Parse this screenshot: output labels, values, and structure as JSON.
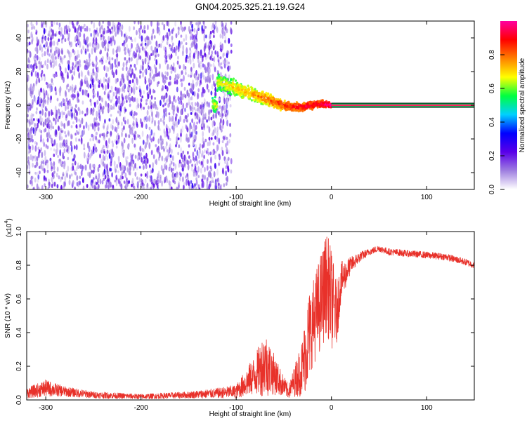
{
  "title": "GN04.2025.325.21.19.G24",
  "chart_data": [
    {
      "type": "heatmap",
      "xlabel": "Height of straight line (km)",
      "ylabel": "Frequency (Hz)",
      "xlim": [
        -320,
        150
      ],
      "ylim": [
        -50,
        50
      ],
      "x_ticks": [
        -300,
        -200,
        -100,
        0,
        100
      ],
      "y_ticks": [
        -40,
        -20,
        0,
        20,
        40
      ],
      "colorbar": {
        "label": "Normalized spectral amplitude",
        "range": [
          0,
          1
        ],
        "ticks": [
          "0.0",
          "0.2",
          "0.4",
          "0.6",
          "0.8"
        ],
        "colors": [
          "#ffffff",
          "#9f7fe0",
          "#5a00e8",
          "#0000ff",
          "#00d0ff",
          "#00ff40",
          "#ffff00",
          "#ff8000",
          "#ff0000",
          "#ff00a0"
        ]
      },
      "ridge": {
        "x": [
          -120,
          -100,
          -80,
          -60,
          -50,
          -40,
          -30,
          -20,
          -10,
          0,
          150
        ],
        "y": [
          14,
          10,
          6,
          2,
          0,
          -1,
          -1,
          0,
          1,
          0,
          0
        ]
      },
      "noise_extent_x": [
        -320,
        -105
      ],
      "line_x": [
        0,
        150
      ],
      "line_y": 0
    },
    {
      "type": "line",
      "xlabel": "Height of straight line (km)",
      "ylabel": "SNR (10 * v/v)",
      "y_multiplier": "(x10",
      "y_exponent": "4",
      "y_multiplier_close": ")",
      "xlim": [
        -320,
        150
      ],
      "ylim": [
        0,
        1.0
      ],
      "x_ticks": [
        -300,
        -200,
        -100,
        0,
        100
      ],
      "y_ticks": [
        "0.0",
        "0.2",
        "0.4",
        "0.6",
        "0.8",
        "1.0"
      ],
      "color": "#e8312a",
      "series": [
        {
          "x": [
            -320,
            -300,
            -280,
            -250,
            -200,
            -150,
            -120,
            -100,
            -90,
            -80,
            -70,
            -60,
            -50,
            -45,
            -40,
            -30,
            -25,
            -20,
            -10,
            -5,
            0,
            5,
            10,
            20,
            30,
            40,
            50,
            60,
            80,
            100,
            120,
            140,
            150
          ],
          "values": [
            0.04,
            0.07,
            0.05,
            0.03,
            0.02,
            0.03,
            0.04,
            0.05,
            0.1,
            0.15,
            0.22,
            0.15,
            0.08,
            0.05,
            0.1,
            0.2,
            0.35,
            0.45,
            0.6,
            0.7,
            0.6,
            0.5,
            0.7,
            0.8,
            0.85,
            0.88,
            0.9,
            0.88,
            0.87,
            0.86,
            0.85,
            0.82,
            0.8
          ],
          "spread": [
            0.03,
            0.05,
            0.03,
            0.02,
            0.015,
            0.02,
            0.03,
            0.04,
            0.08,
            0.12,
            0.2,
            0.12,
            0.06,
            0.04,
            0.08,
            0.18,
            0.28,
            0.25,
            0.3,
            0.3,
            0.3,
            0.2,
            0.12,
            0.05,
            0.03,
            0.02,
            0.02,
            0.02,
            0.02,
            0.02,
            0.02,
            0.02,
            0.02
          ]
        }
      ]
    }
  ]
}
